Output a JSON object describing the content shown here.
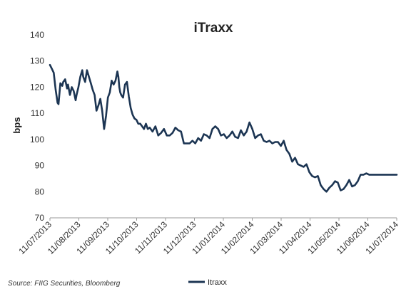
{
  "chart_data": {
    "type": "line",
    "title": "iTraxx",
    "xlabel": "",
    "ylabel": "bps",
    "ylim": [
      70,
      140
    ],
    "yticks": [
      70,
      80,
      90,
      100,
      110,
      120,
      130,
      140
    ],
    "xlim": [
      "2013-07-11",
      "2014-07-11"
    ],
    "xticks": [
      "11/07/2013",
      "11/08/2013",
      "11/09/2013",
      "11/10/2013",
      "11/11/2013",
      "11/12/2013",
      "11/01/2014",
      "11/02/2014",
      "11/03/2014",
      "11/04/2014",
      "11/05/2014",
      "11/06/2014",
      "11/07/2014"
    ],
    "grid": false,
    "legend_position": "bottom",
    "source": "Source: FIIG Securities, Bloomberg",
    "series": [
      {
        "name": "Itraxx",
        "color": "#1c3553",
        "x": [
          "2013-07-11",
          "2013-07-13",
          "2013-07-15",
          "2013-07-17",
          "2013-07-19",
          "2013-07-20",
          "2013-07-22",
          "2013-07-24",
          "2013-07-25",
          "2013-07-27",
          "2013-07-29",
          "2013-07-30",
          "2013-08-01",
          "2013-08-03",
          "2013-08-05",
          "2013-08-07",
          "2013-08-08",
          "2013-08-10",
          "2013-08-12",
          "2013-08-14",
          "2013-08-15",
          "2013-08-17",
          "2013-08-19",
          "2013-08-21",
          "2013-08-23",
          "2013-08-25",
          "2013-08-27",
          "2013-08-29",
          "2013-08-31",
          "2013-09-02",
          "2013-09-04",
          "2013-09-06",
          "2013-09-08",
          "2013-09-10",
          "2013-09-12",
          "2013-09-14",
          "2013-09-16",
          "2013-09-18",
          "2013-09-20",
          "2013-09-21",
          "2013-09-22",
          "2013-09-23",
          "2013-09-24",
          "2013-09-26",
          "2013-09-28",
          "2013-09-30",
          "2013-10-02",
          "2013-10-04",
          "2013-10-06",
          "2013-10-08",
          "2013-10-10",
          "2013-10-12",
          "2013-10-14",
          "2013-10-16",
          "2013-10-18",
          "2013-10-20",
          "2013-10-22",
          "2013-10-24",
          "2013-10-27",
          "2013-10-30",
          "2013-11-02",
          "2013-11-05",
          "2013-11-08",
          "2013-11-11",
          "2013-11-14",
          "2013-11-17",
          "2013-11-20",
          "2013-11-23",
          "2013-11-26",
          "2013-11-29",
          "2013-12-02",
          "2013-12-05",
          "2013-12-08",
          "2013-12-11",
          "2013-12-14",
          "2013-12-17",
          "2013-12-20",
          "2013-12-23",
          "2013-12-26",
          "2013-12-29",
          "2014-01-01",
          "2014-01-04",
          "2014-01-07",
          "2014-01-10",
          "2014-01-13",
          "2014-01-16",
          "2014-01-19",
          "2014-01-22",
          "2014-01-25",
          "2014-01-28",
          "2014-01-31",
          "2014-02-03",
          "2014-02-06",
          "2014-02-09",
          "2014-02-12",
          "2014-02-15",
          "2014-02-18",
          "2014-02-21",
          "2014-02-24",
          "2014-02-27",
          "2014-03-02",
          "2014-03-05",
          "2014-03-08",
          "2014-03-11",
          "2014-03-14",
          "2014-03-17",
          "2014-03-20",
          "2014-03-23",
          "2014-03-26",
          "2014-03-29",
          "2014-04-01",
          "2014-04-04",
          "2014-04-07",
          "2014-04-10",
          "2014-04-13",
          "2014-04-16",
          "2014-04-19",
          "2014-04-22",
          "2014-04-25",
          "2014-04-28",
          "2014-05-01",
          "2014-05-04",
          "2014-05-07",
          "2014-05-10",
          "2014-05-13",
          "2014-05-16",
          "2014-05-19",
          "2014-05-22",
          "2014-05-25",
          "2014-05-28",
          "2014-05-31",
          "2014-06-03",
          "2014-06-06",
          "2014-06-09",
          "2014-06-12",
          "2014-06-15",
          "2014-06-18",
          "2014-06-21",
          "2014-06-24",
          "2014-06-27",
          "2014-06-30",
          "2014-07-03",
          "2014-07-06",
          "2014-07-09",
          "2014-07-11"
        ],
        "values": [
          128.5,
          127,
          125.5,
          119,
          114,
          113.5,
          121.5,
          120.5,
          122,
          123,
          119.5,
          121,
          117,
          120,
          118.5,
          115,
          117,
          120,
          124,
          126.5,
          124,
          122,
          126.5,
          124,
          121.5,
          119,
          117,
          111,
          113,
          115.5,
          111,
          104,
          109,
          116,
          118,
          122.5,
          121,
          122.5,
          126,
          124,
          120,
          118,
          117,
          116,
          121,
          122,
          116.5,
          112,
          109.5,
          108,
          107.5,
          106,
          106,
          105,
          104,
          106,
          104,
          104.5,
          103,
          105,
          101.5,
          102.5,
          104,
          101.5,
          101.5,
          102.5,
          104.5,
          103.5,
          103,
          98.5,
          98.5,
          98.5,
          99.5,
          98.5,
          100.5,
          99.5,
          102,
          101.5,
          100.5,
          104,
          105,
          104,
          101.5,
          102,
          100.5,
          101.5,
          103,
          101,
          100.5,
          103.5,
          101.5,
          103,
          106.5,
          104,
          100.5,
          101.5,
          102,
          99.5,
          99,
          99.5,
          98.5,
          99,
          99,
          97.5,
          99.5,
          96,
          94.5,
          91.5,
          93,
          90.5,
          90,
          89.5,
          90.5,
          87.5,
          86,
          85.5,
          86,
          82.5,
          81,
          80,
          81.5,
          82.5,
          84,
          83.5,
          80.5,
          81,
          82.5,
          84.5,
          82,
          82.5,
          84,
          86.5,
          86.5,
          87,
          86.5,
          86.5,
          86.5,
          86.5,
          86.5,
          86.5,
          86.5,
          86.5,
          86.5,
          86.5,
          86.5
        ]
      }
    ]
  }
}
